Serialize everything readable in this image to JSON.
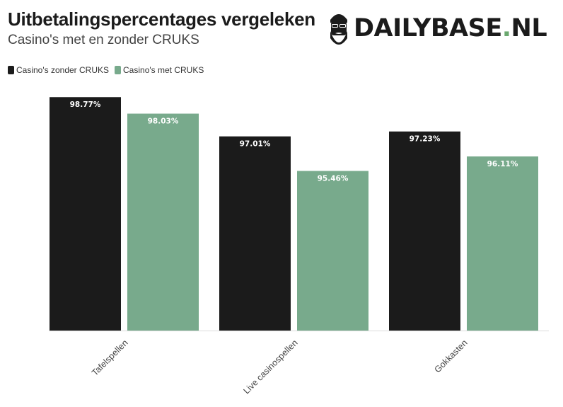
{
  "header": {
    "title": "Uitbetalingspercentages vergeleken",
    "subtitle": "Casino's met en zonder CRUKS"
  },
  "logo": {
    "text_main": "DAILYBASE",
    "text_dot": ".",
    "text_tld": "NL",
    "icon": "bearded-man-sunglasses-icon"
  },
  "colors": {
    "series_a": "#1b1b1b",
    "series_b": "#78aa8c"
  },
  "chart_data": {
    "type": "bar",
    "title": "Uitbetalingspercentages vergeleken",
    "subtitle": "Casino's met en zonder CRUKS",
    "categories": [
      "Tafelspellen",
      "Live casinospellen",
      "Gokkasten"
    ],
    "series": [
      {
        "name": "Casino's zonder CRUKS",
        "values": [
          98.77,
          97.01,
          97.23
        ],
        "labels": [
          "98.77%",
          "97.01%",
          "97.23%"
        ]
      },
      {
        "name": "Casino's met CRUKS",
        "values": [
          98.03,
          95.46,
          96.11
        ],
        "labels": [
          "98.03%",
          "95.46%",
          "96.11%"
        ]
      }
    ],
    "ylim": [
      88.3,
      99.0
    ],
    "xlabel": "",
    "ylabel": "",
    "grid": false,
    "legend": "top-left"
  }
}
